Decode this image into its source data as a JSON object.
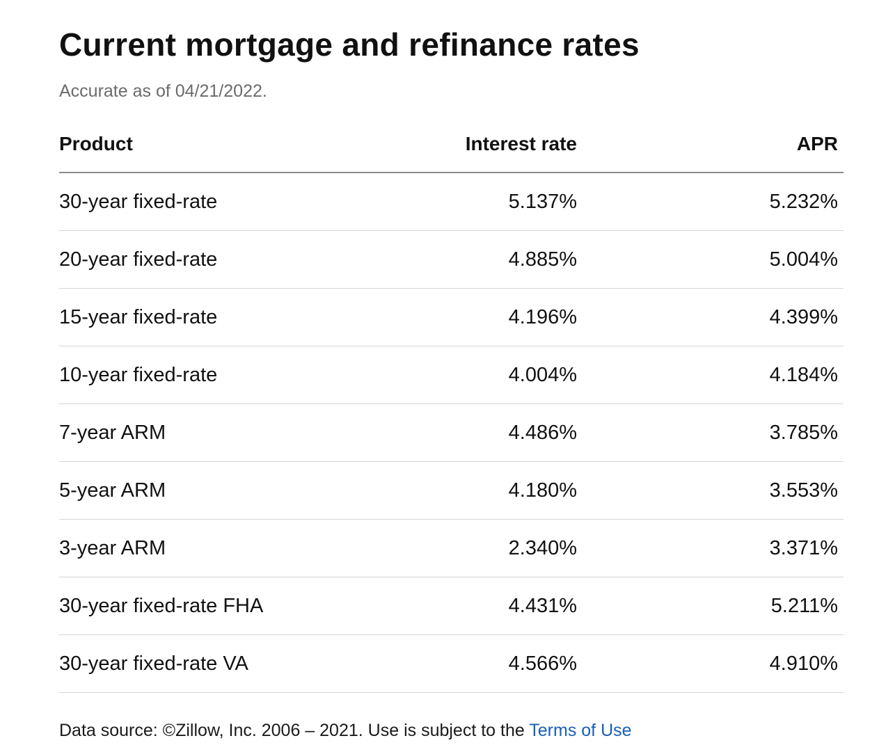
{
  "heading": "Current mortgage and refinance rates",
  "accurate_as_of": "Accurate as of 04/21/2022.",
  "table": {
    "headers": {
      "product": "Product",
      "interest_rate": "Interest rate",
      "apr": "APR"
    },
    "rows": [
      {
        "product": "30-year fixed-rate",
        "interest_rate": "5.137%",
        "apr": "5.232%"
      },
      {
        "product": "20-year fixed-rate",
        "interest_rate": "4.885%",
        "apr": "5.004%"
      },
      {
        "product": "15-year fixed-rate",
        "interest_rate": "4.196%",
        "apr": "4.399%"
      },
      {
        "product": "10-year fixed-rate",
        "interest_rate": "4.004%",
        "apr": "4.184%"
      },
      {
        "product": "7-year ARM",
        "interest_rate": "4.486%",
        "apr": "3.785%"
      },
      {
        "product": "5-year ARM",
        "interest_rate": "4.180%",
        "apr": "3.553%"
      },
      {
        "product": "3-year ARM",
        "interest_rate": "2.340%",
        "apr": "3.371%"
      },
      {
        "product": "30-year fixed-rate FHA",
        "interest_rate": "4.431%",
        "apr": "5.211%"
      },
      {
        "product": "30-year fixed-rate VA",
        "interest_rate": "4.566%",
        "apr": "4.910%"
      }
    ]
  },
  "footer": {
    "text": "Data source: ©Zillow, Inc. 2006 – 2021. Use is subject to the ",
    "link_label": "Terms of Use",
    "link_color": "#1a5fb4"
  }
}
